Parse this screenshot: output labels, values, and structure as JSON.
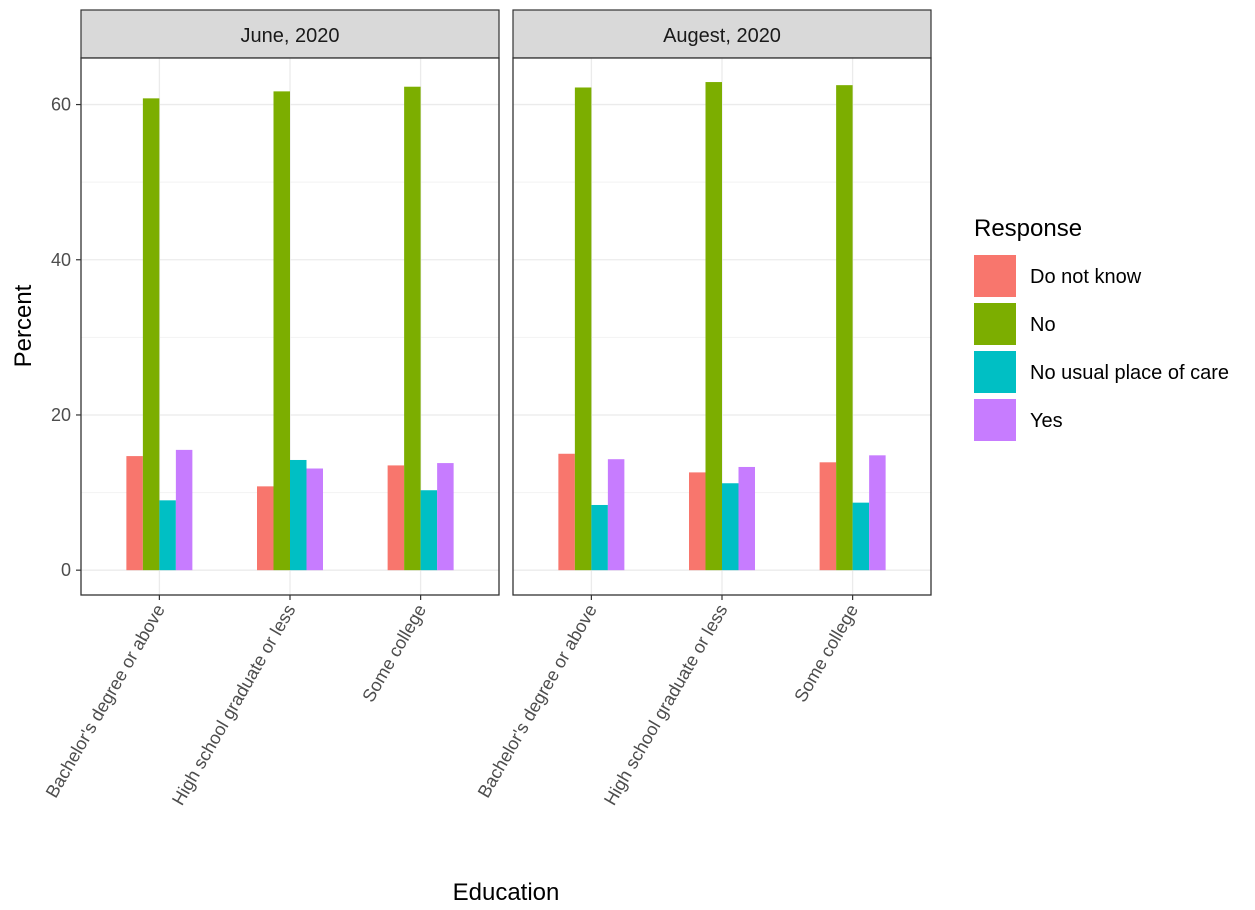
{
  "chart_data": {
    "type": "bar",
    "facet_strip_color": "#d9d9d9",
    "xlabel": "Education",
    "ylabel": "Percent",
    "ylim": [
      -3.2,
      66
    ],
    "yticks": [
      0,
      20,
      40,
      60
    ],
    "grid": true,
    "legend": {
      "title": "Response",
      "position": "right"
    },
    "categories": [
      "Bachelor's degree or above",
      "High school graduate or less",
      "Some college"
    ],
    "series_meta": [
      {
        "name": "Do not know",
        "color": "#f8766d"
      },
      {
        "name": "No",
        "color": "#7cae00"
      },
      {
        "name": "No usual place of care",
        "color": "#00bfc4"
      },
      {
        "name": "Yes",
        "color": "#c77cff"
      }
    ],
    "facets": [
      {
        "title": "June, 2020",
        "series": [
          {
            "name": "Do not know",
            "values": [
              14.7,
              10.8,
              13.5
            ]
          },
          {
            "name": "No",
            "values": [
              60.8,
              61.7,
              62.3
            ]
          },
          {
            "name": "No usual place of care",
            "values": [
              9.0,
              14.2,
              10.3
            ]
          },
          {
            "name": "Yes",
            "values": [
              15.5,
              13.1,
              13.8
            ]
          }
        ]
      },
      {
        "title": "Augest, 2020",
        "series": [
          {
            "name": "Do not know",
            "values": [
              15.0,
              12.6,
              13.9
            ]
          },
          {
            "name": "No",
            "values": [
              62.2,
              62.9,
              62.5
            ]
          },
          {
            "name": "No usual place of care",
            "values": [
              8.4,
              11.2,
              8.7
            ]
          },
          {
            "name": "Yes",
            "values": [
              14.3,
              13.3,
              14.8
            ]
          }
        ]
      }
    ]
  }
}
